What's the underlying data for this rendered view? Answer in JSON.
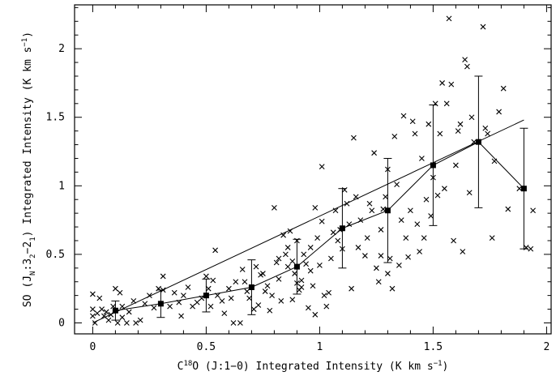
{
  "chart_data": {
    "type": "scatter",
    "xlabel": {
      "parts": [
        "C",
        "18",
        "O (J:1−0) Integrated Intensity (K km s",
        "−1",
        ")"
      ]
    },
    "ylabel": {
      "parts": [
        "SO (J",
        "N",
        ":3",
        "2",
        "−2",
        "1",
        ") Integrated Intensity (K km s",
        "−1",
        ")"
      ]
    },
    "xlim": [
      -0.08,
      2.02
    ],
    "ylim": [
      -0.08,
      2.32
    ],
    "xticks": [
      0,
      0.5,
      1,
      1.5,
      2
    ],
    "xtick_labels": [
      "0",
      "0.5",
      "1",
      "1.5",
      "2"
    ],
    "yticks": [
      0,
      0.5,
      1,
      1.5,
      2
    ],
    "ytick_labels": [
      "0",
      "0.5",
      "1",
      "1.5",
      "2"
    ],
    "grid": false,
    "series": [
      {
        "marker": "x",
        "points": [
          [
            0.0,
            0.21
          ],
          [
            0.0,
            0.1
          ],
          [
            0.0,
            0.05
          ],
          [
            0.01,
            0.0
          ],
          [
            0.02,
            0.07
          ],
          [
            0.03,
            0.18
          ],
          [
            0.04,
            0.1
          ],
          [
            0.05,
            0.05
          ],
          [
            0.06,
            0.08
          ],
          [
            0.07,
            0.02
          ],
          [
            0.08,
            0.06
          ],
          [
            0.09,
            0.12
          ],
          [
            0.1,
            0.25
          ],
          [
            0.11,
            0.0
          ],
          [
            0.12,
            0.22
          ],
          [
            0.13,
            0.12
          ],
          [
            0.13,
            0.04
          ],
          [
            0.15,
            0.0
          ],
          [
            0.16,
            0.08
          ],
          [
            0.18,
            0.16
          ],
          [
            0.19,
            0.0
          ],
          [
            0.21,
            0.02
          ],
          [
            0.23,
            0.14
          ],
          [
            0.25,
            0.2
          ],
          [
            0.27,
            0.11
          ],
          [
            0.29,
            0.25
          ],
          [
            0.31,
            0.34
          ],
          [
            0.31,
            0.24
          ],
          [
            0.34,
            0.12
          ],
          [
            0.36,
            0.22
          ],
          [
            0.38,
            0.15
          ],
          [
            0.39,
            0.05
          ],
          [
            0.4,
            0.2
          ],
          [
            0.42,
            0.26
          ],
          [
            0.44,
            0.12
          ],
          [
            0.46,
            0.15
          ],
          [
            0.48,
            0.18
          ],
          [
            0.5,
            0.34
          ],
          [
            0.51,
            0.25
          ],
          [
            0.52,
            0.12
          ],
          [
            0.53,
            0.31
          ],
          [
            0.54,
            0.53
          ],
          [
            0.55,
            0.2
          ],
          [
            0.57,
            0.16
          ],
          [
            0.58,
            0.07
          ],
          [
            0.6,
            0.25
          ],
          [
            0.61,
            0.18
          ],
          [
            0.62,
            0.0
          ],
          [
            0.63,
            0.3
          ],
          [
            0.65,
            0.0
          ],
          [
            0.66,
            0.39
          ],
          [
            0.67,
            0.3
          ],
          [
            0.68,
            0.23
          ],
          [
            0.69,
            0.18
          ],
          [
            0.71,
            0.1
          ],
          [
            0.72,
            0.41
          ],
          [
            0.73,
            0.13
          ],
          [
            0.74,
            0.35
          ],
          [
            0.75,
            0.36
          ],
          [
            0.76,
            0.23
          ],
          [
            0.77,
            0.27
          ],
          [
            0.78,
            0.09
          ],
          [
            0.79,
            0.2
          ],
          [
            0.8,
            0.84
          ],
          [
            0.81,
            0.44
          ],
          [
            0.82,
            0.47
          ],
          [
            0.82,
            0.32
          ],
          [
            0.83,
            0.16
          ],
          [
            0.84,
            0.64
          ],
          [
            0.85,
            0.5
          ],
          [
            0.86,
            0.41
          ],
          [
            0.86,
            0.55
          ],
          [
            0.87,
            0.67
          ],
          [
            0.88,
            0.45
          ],
          [
            0.88,
            0.17
          ],
          [
            0.89,
            0.36
          ],
          [
            0.9,
            0.29
          ],
          [
            0.9,
            0.6
          ],
          [
            0.91,
            0.24
          ],
          [
            0.92,
            0.31
          ],
          [
            0.92,
            0.26
          ],
          [
            0.93,
            0.5
          ],
          [
            0.94,
            0.43
          ],
          [
            0.95,
            0.11
          ],
          [
            0.96,
            0.38
          ],
          [
            0.96,
            0.55
          ],
          [
            0.97,
            0.27
          ],
          [
            0.98,
            0.84
          ],
          [
            0.98,
            0.06
          ],
          [
            0.99,
            0.62
          ],
          [
            1.0,
            0.42
          ],
          [
            1.01,
            0.74
          ],
          [
            1.01,
            1.14
          ],
          [
            1.02,
            0.2
          ],
          [
            1.03,
            0.12
          ],
          [
            1.04,
            0.22
          ],
          [
            1.05,
            0.47
          ],
          [
            1.06,
            0.66
          ],
          [
            1.07,
            0.82
          ],
          [
            1.08,
            0.6
          ],
          [
            1.09,
            0.68
          ],
          [
            1.1,
            0.54
          ],
          [
            1.11,
            0.97
          ],
          [
            1.12,
            0.87
          ],
          [
            1.13,
            0.72
          ],
          [
            1.14,
            0.25
          ],
          [
            1.15,
            1.35
          ],
          [
            1.16,
            0.92
          ],
          [
            1.17,
            0.55
          ],
          [
            1.18,
            0.75
          ],
          [
            1.2,
            0.49
          ],
          [
            1.21,
            0.62
          ],
          [
            1.22,
            0.87
          ],
          [
            1.23,
            0.82
          ],
          [
            1.24,
            1.24
          ],
          [
            1.25,
            0.4
          ],
          [
            1.26,
            0.3
          ],
          [
            1.27,
            0.49
          ],
          [
            1.27,
            0.68
          ],
          [
            1.28,
            0.83
          ],
          [
            1.29,
            0.92
          ],
          [
            1.3,
            1.12
          ],
          [
            1.3,
            0.36
          ],
          [
            1.31,
            0.47
          ],
          [
            1.32,
            0.25
          ],
          [
            1.33,
            1.36
          ],
          [
            1.34,
            1.01
          ],
          [
            1.35,
            0.42
          ],
          [
            1.36,
            0.75
          ],
          [
            1.37,
            1.51
          ],
          [
            1.38,
            0.62
          ],
          [
            1.39,
            0.48
          ],
          [
            1.4,
            0.82
          ],
          [
            1.41,
            1.47
          ],
          [
            1.42,
            1.38
          ],
          [
            1.43,
            0.72
          ],
          [
            1.44,
            0.52
          ],
          [
            1.45,
            1.2
          ],
          [
            1.46,
            0.62
          ],
          [
            1.47,
            0.9
          ],
          [
            1.48,
            1.45
          ],
          [
            1.49,
            0.78
          ],
          [
            1.5,
            1.06
          ],
          [
            1.51,
            1.6
          ],
          [
            1.52,
            0.93
          ],
          [
            1.53,
            1.38
          ],
          [
            1.54,
            1.75
          ],
          [
            1.55,
            0.98
          ],
          [
            1.56,
            1.6
          ],
          [
            1.57,
            2.22
          ],
          [
            1.58,
            1.74
          ],
          [
            1.59,
            0.6
          ],
          [
            1.6,
            1.15
          ],
          [
            1.61,
            1.4
          ],
          [
            1.62,
            1.45
          ],
          [
            1.63,
            0.52
          ],
          [
            1.64,
            1.92
          ],
          [
            1.65,
            1.87
          ],
          [
            1.66,
            0.95
          ],
          [
            1.67,
            1.5
          ],
          [
            1.68,
            1.32
          ],
          [
            1.7,
            1.32
          ],
          [
            1.72,
            2.16
          ],
          [
            1.73,
            1.42
          ],
          [
            1.74,
            1.38
          ],
          [
            1.76,
            0.62
          ],
          [
            1.77,
            1.18
          ],
          [
            1.79,
            1.54
          ],
          [
            1.81,
            1.71
          ],
          [
            1.83,
            0.83
          ],
          [
            1.88,
            0.98
          ],
          [
            1.91,
            0.55
          ],
          [
            1.93,
            0.54
          ],
          [
            1.94,
            0.82
          ]
        ]
      },
      {
        "marker": "square",
        "points": [
          [
            0.1,
            0.09
          ],
          [
            0.3,
            0.14
          ],
          [
            0.5,
            0.2
          ],
          [
            0.7,
            0.26
          ],
          [
            0.9,
            0.41
          ],
          [
            1.1,
            0.69
          ],
          [
            1.3,
            0.82
          ],
          [
            1.5,
            1.15
          ],
          [
            1.7,
            1.32
          ],
          [
            1.9,
            0.98
          ]
        ],
        "errors": [
          0.07,
          0.1,
          0.12,
          0.2,
          0.2,
          0.29,
          0.38,
          0.44,
          0.48,
          0.44
        ]
      }
    ],
    "fit_line": {
      "x": [
        0.0,
        1.9
      ],
      "y": [
        0.0,
        1.48
      ]
    }
  }
}
